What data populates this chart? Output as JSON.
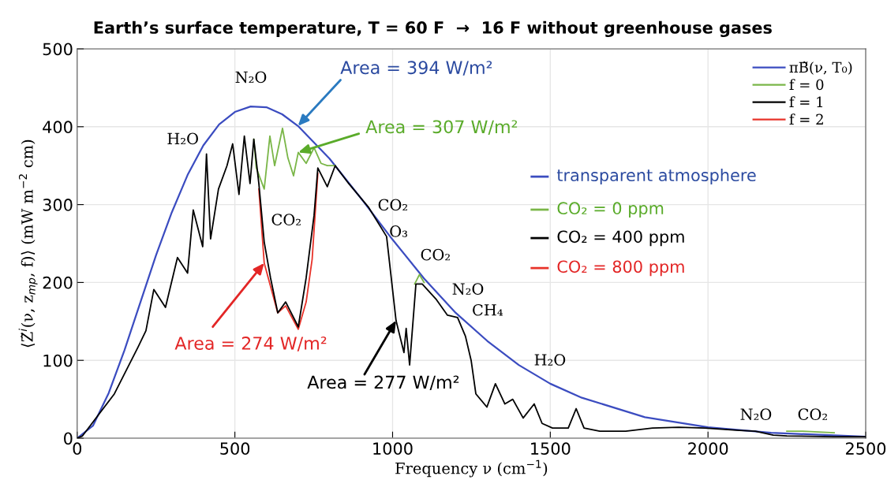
{
  "chart_data": {
    "type": "line",
    "title": "Earth’s surface temperature, T = 60 F  →  16 F without greenhouse gases",
    "xlabel": "Frequency ν (cm$^{−1}$)",
    "ylabel": "⟨Z̃$^{i}$(ν, z$_{mp}$, f)⟩ (mW m$^{−2}$ cm)",
    "xlim": [
      0,
      2500
    ],
    "xticks": [
      0,
      500,
      1000,
      1500,
      2000,
      2500
    ],
    "ylim": [
      0,
      500
    ],
    "yticks": [
      0,
      100,
      200,
      300,
      400,
      500
    ],
    "grid": true,
    "legend": "top right",
    "line_style": "solid",
    "marker": "none",
    "series": [
      {
        "name": "πB̃(ν, T₀)",
        "color": "#3b4cc0",
        "x": [
          0,
          50,
          100,
          150,
          200,
          250,
          300,
          350,
          400,
          450,
          500,
          550,
          600,
          650,
          700,
          800,
          900,
          1000,
          1100,
          1200,
          1300,
          1400,
          1500,
          1600,
          1800,
          2000,
          2200,
          2500
        ],
        "values": [
          0,
          16,
          58,
          113,
          174,
          235,
          290,
          338,
          376,
          403,
          419,
          426,
          425,
          416,
          401,
          359,
          308,
          255,
          205,
          161,
          125,
          94,
          70,
          52,
          27,
          14,
          7,
          2
        ]
      },
      {
        "name": "f = 0",
        "color": "#7ab648",
        "x": [
          560,
          568,
          593,
          611,
          626,
          651,
          668,
          686,
          701,
          726,
          751,
          773,
          793,
          818,
          1000,
          1070,
          1085,
          1100,
          1800,
          2250,
          2300,
          2350,
          2400
        ],
        "values": [
          384,
          347,
          320,
          388,
          350,
          398,
          360,
          337,
          367,
          353,
          373,
          353,
          350,
          350,
          null,
          198,
          210,
          200,
          null,
          9,
          9,
          8,
          7
        ]
      },
      {
        "name": "f = 1",
        "color": "#000000",
        "x": [
          0,
          17,
          118,
          193,
          218,
          243,
          280,
          318,
          350,
          368,
          398,
          410,
          423,
          448,
          475,
          493,
          513,
          530,
          548,
          560,
          576,
          593,
          613,
          636,
          661,
          701,
          726,
          751,
          763,
          793,
          818,
          861,
          923,
          981,
          1011,
          1036,
          1043,
          1054,
          1074,
          1094,
          1139,
          1174,
          1206,
          1231,
          1249,
          1264,
          1299,
          1326,
          1356,
          1381,
          1414,
          1449,
          1474,
          1507,
          1557,
          1582,
          1607,
          1657,
          1739,
          1824,
          1907,
          1989,
          2100,
          2150,
          2207,
          2250,
          2400,
          2500
        ],
        "values": [
          0,
          3,
          57,
          117,
          138,
          191,
          168,
          232,
          212,
          293,
          246,
          365,
          256,
          320,
          350,
          378,
          313,
          388,
          327,
          384,
          327,
          252,
          206,
          161,
          175,
          143,
          206,
          286,
          347,
          323,
          350,
          327,
          297,
          259,
          151,
          110,
          141,
          94,
          198,
          198,
          178,
          158,
          155,
          131,
          100,
          57,
          40,
          70,
          44,
          50,
          26,
          44,
          19,
          13,
          13,
          38,
          13,
          9,
          9,
          13,
          14,
          13,
          10,
          9,
          4,
          3,
          2,
          2
        ]
      },
      {
        "name": "f = 2",
        "color": "#e8332a",
        "x": [
          576,
          593,
          613,
          636,
          661,
          701,
          726,
          745,
          763
        ],
        "values": [
          320,
          225,
          195,
          161,
          170,
          140,
          175,
          230,
          340
        ]
      }
    ],
    "annotations": [
      "transparent atmosphere",
      "CO₂ = 0 ppm",
      "CO₂ = 400 ppm",
      "CO₂ = 800 ppm",
      {
        "text": "Area = 394 W/m²",
        "x": 700,
        "y": 401
      },
      {
        "text": "Area = 307 W/m²",
        "x": 701,
        "y": 367
      },
      {
        "text": "Area = 274 W/m²",
        "x": 593,
        "y": 225
      },
      {
        "text": "Area = 277 W/m²",
        "x": 1011,
        "y": 151
      },
      "H₂O",
      "N₂O",
      "CO₂",
      "CO₂",
      "O₃",
      "CO₂",
      "N₂O",
      "CH₄",
      "H₂O",
      "N₂O",
      "CO₂"
    ]
  }
}
